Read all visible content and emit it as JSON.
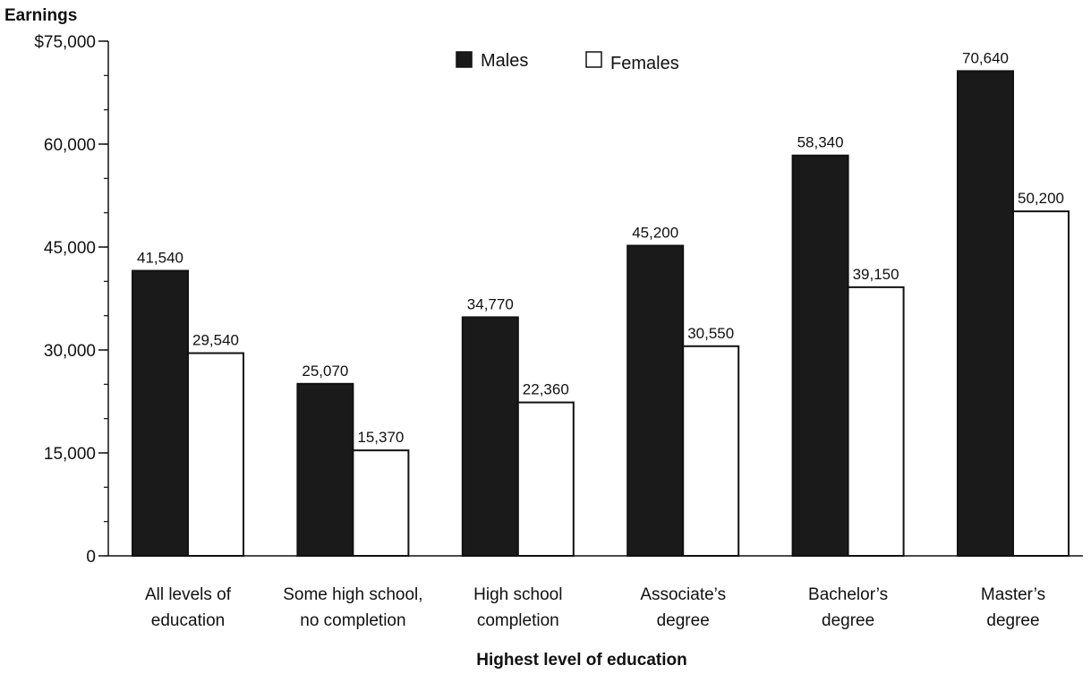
{
  "chart_data": {
    "type": "bar",
    "ylabel": "Earnings",
    "xlabel": "Highest level of education",
    "categories": [
      [
        "All levels of",
        "education"
      ],
      [
        "Some high school,",
        "no completion"
      ],
      [
        "High school",
        "completion"
      ],
      [
        "Associate’s",
        "degree"
      ],
      [
        "Bachelor’s",
        "degree"
      ],
      [
        "Master’s",
        "degree"
      ]
    ],
    "series": [
      {
        "name": "Males",
        "color": "#1a1a1a",
        "values": [
          41540,
          25070,
          34770,
          45200,
          58340,
          70640
        ],
        "labels": [
          "41,540",
          "25,070",
          "34,770",
          "45,200",
          "58,340",
          "70,640"
        ]
      },
      {
        "name": "Females",
        "color": "#ffffff",
        "values": [
          29540,
          15370,
          22360,
          30550,
          39150,
          50200
        ],
        "labels": [
          "29,540",
          "15,370",
          "22,360",
          "30,550",
          "39,150",
          "50,200"
        ]
      }
    ],
    "ylim": [
      0,
      75000
    ],
    "yticks": [
      0,
      15000,
      30000,
      45000,
      60000,
      75000
    ],
    "ytick_labels": [
      "0",
      "15,000",
      "30,000",
      "45,000",
      "60,000",
      "$75,000"
    ],
    "legend_position": "top-center",
    "grid": false
  }
}
